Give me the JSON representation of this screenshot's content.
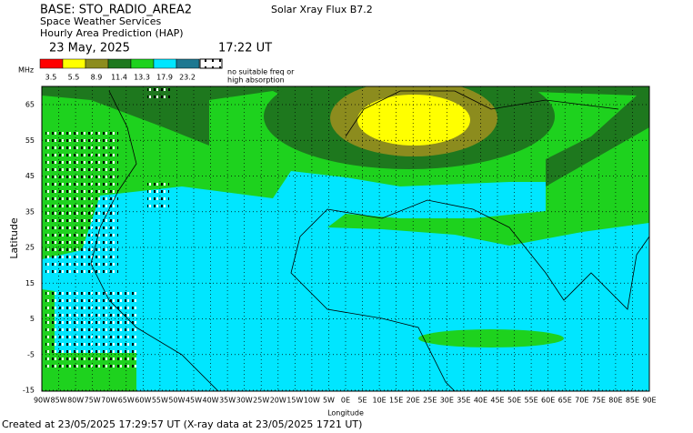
{
  "header": {
    "base": "BASE: STO_RADIO_AREA2",
    "service": "Space Weather Services",
    "product": "Hourly Area Prediction (HAP)",
    "date": "23 May, 2025",
    "time": "17:22 UT",
    "solar_flux": "Solar Xray Flux B7.2"
  },
  "legend": {
    "unit": "MHz",
    "items": [
      {
        "value": 3.5,
        "color": "#ff0000"
      },
      {
        "value": 5.5,
        "color": "#ffff00"
      },
      {
        "value": 8.9,
        "color": "#8c8c1e"
      },
      {
        "value": 11.4,
        "color": "#1e781e"
      },
      {
        "value": 13.3,
        "color": "#1ed21e"
      },
      {
        "value": 17.9,
        "color": "#00e6ff"
      },
      {
        "value": 23.2,
        "color": "#1e7891"
      }
    ],
    "note_lines": [
      "no suitable freq or",
      "high absorption"
    ]
  },
  "map": {
    "y_label": "Latitude",
    "x_label": "Longitude",
    "lat_ticks": [
      65,
      55,
      45,
      35,
      25,
      15,
      5,
      -5,
      -15
    ],
    "lon_ticks": [
      {
        "value": -90,
        "label": "90W"
      },
      {
        "value": -85,
        "label": "85W"
      },
      {
        "value": -80,
        "label": "80W"
      },
      {
        "value": -75,
        "label": "75W"
      },
      {
        "value": -70,
        "label": "70W"
      },
      {
        "value": -65,
        "label": "65W"
      },
      {
        "value": -60,
        "label": "60W"
      },
      {
        "value": -55,
        "label": "55W"
      },
      {
        "value": -50,
        "label": "50W"
      },
      {
        "value": -45,
        "label": "45W"
      },
      {
        "value": -40,
        "label": "40W"
      },
      {
        "value": -35,
        "label": "35W"
      },
      {
        "value": -30,
        "label": "30W"
      },
      {
        "value": -25,
        "label": "25W"
      },
      {
        "value": -20,
        "label": "20W"
      },
      {
        "value": -15,
        "label": "15W"
      },
      {
        "value": -10,
        "label": "10W"
      },
      {
        "value": -5,
        "label": "5W"
      },
      {
        "value": 0,
        "label": "0E"
      },
      {
        "value": 5,
        "label": "5E"
      },
      {
        "value": 10,
        "label": "10E"
      },
      {
        "value": 15,
        "label": "15E"
      },
      {
        "value": 20,
        "label": "20E"
      },
      {
        "value": 25,
        "label": "25E"
      },
      {
        "value": 30,
        "label": "30E"
      },
      {
        "value": 35,
        "label": "35E"
      },
      {
        "value": 40,
        "label": "40E"
      },
      {
        "value": 45,
        "label": "45E"
      },
      {
        "value": 50,
        "label": "50E"
      },
      {
        "value": 55,
        "label": "55E"
      },
      {
        "value": 60,
        "label": "60E"
      },
      {
        "value": 65,
        "label": "65E"
      },
      {
        "value": 70,
        "label": "70E"
      },
      {
        "value": 75,
        "label": "75E"
      },
      {
        "value": 80,
        "label": "80E"
      },
      {
        "value": 85,
        "label": "85E"
      },
      {
        "value": 90,
        "label": "90E"
      }
    ]
  },
  "footer": "Created at 23/05/2025 17:29:57 UT (X-ray data at 23/05/2025 1721 UT)"
}
